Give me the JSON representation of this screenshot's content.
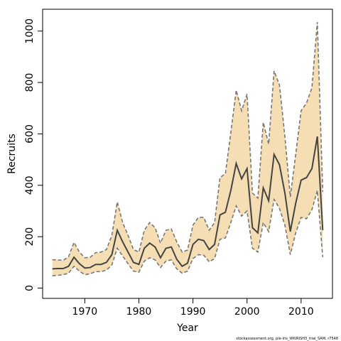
{
  "chart_data": {
    "type": "area",
    "title": "",
    "xlabel": "Year",
    "ylabel": "Recruits",
    "xlim": [
      1962.2,
      2015.8
    ],
    "ylim": [
      -40,
      1085
    ],
    "xticks": [
      1970,
      1980,
      1990,
      2000,
      2010
    ],
    "yticks": [
      0,
      200,
      400,
      600,
      800,
      1000
    ],
    "grid": false,
    "band_color": "#F5DEB3",
    "line_color": "#444444",
    "x": [
      1964,
      1965,
      1966,
      1967,
      1968,
      1969,
      1970,
      1971,
      1972,
      1973,
      1974,
      1975,
      1976,
      1977,
      1978,
      1979,
      1980,
      1981,
      1982,
      1983,
      1984,
      1985,
      1986,
      1987,
      1988,
      1989,
      1990,
      1991,
      1992,
      1993,
      1994,
      1995,
      1996,
      1997,
      1998,
      1999,
      2000,
      2001,
      2002,
      2003,
      2004,
      2005,
      2006,
      2007,
      2008,
      2009,
      2010,
      2011,
      2012,
      2013,
      2014
    ],
    "series": [
      {
        "role": "estimate",
        "values": [
          75,
          76,
          76,
          85,
          120,
          95,
          78,
          80,
          92,
          92,
          100,
          130,
          225,
          180,
          140,
          100,
          92,
          155,
          175,
          160,
          118,
          155,
          160,
          112,
          85,
          97,
          170,
          190,
          185,
          150,
          170,
          285,
          295,
          380,
          485,
          425,
          465,
          235,
          215,
          390,
          340,
          520,
          480,
          370,
          220,
          330,
          420,
          430,
          465,
          590,
          225
        ]
      },
      {
        "role": "upper",
        "values": [
          110,
          110,
          108,
          122,
          178,
          140,
          118,
          120,
          138,
          140,
          150,
          205,
          335,
          255,
          205,
          150,
          140,
          225,
          255,
          235,
          175,
          225,
          230,
          180,
          140,
          148,
          245,
          275,
          275,
          225,
          255,
          430,
          445,
          605,
          770,
          690,
          755,
          370,
          350,
          645,
          560,
          845,
          790,
          590,
          355,
          520,
          690,
          720,
          780,
          1035,
          375
        ]
      },
      {
        "role": "lower",
        "values": [
          48,
          50,
          52,
          58,
          85,
          66,
          52,
          56,
          64,
          64,
          70,
          90,
          155,
          125,
          95,
          66,
          62,
          105,
          118,
          110,
          80,
          105,
          110,
          75,
          58,
          66,
          115,
          130,
          128,
          102,
          115,
          190,
          195,
          255,
          320,
          280,
          300,
          155,
          140,
          255,
          220,
          345,
          310,
          245,
          130,
          215,
          275,
          270,
          305,
          380,
          120
        ]
      }
    ]
  },
  "credit_text": "stockassessment.org, ple-iris_WKIRISH3_trial_SAM, r7548"
}
